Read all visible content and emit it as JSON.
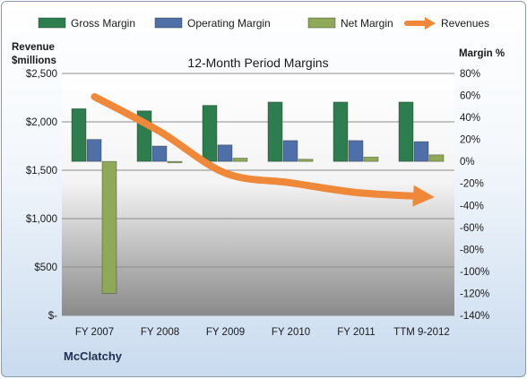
{
  "chart_data": {
    "type": "bar",
    "title": "12-Month Period Margins",
    "company": "McClatchy",
    "categories": [
      "FY 2007",
      "FY 2008",
      "FY 2009",
      "FY 2010",
      "FY 2011",
      "TTM 9-2012"
    ],
    "series": [
      {
        "name": "Gross Margin",
        "axis": "right",
        "unit": "%",
        "color": "#2e7d4f",
        "values": [
          48,
          46,
          51,
          54,
          54,
          54
        ]
      },
      {
        "name": "Operating Margin",
        "axis": "right",
        "unit": "%",
        "color": "#4f6fa8",
        "values": [
          20,
          14,
          15,
          19,
          19,
          18
        ]
      },
      {
        "name": "Net Margin",
        "axis": "right",
        "unit": "%",
        "color": "#8fa958",
        "values": [
          -120,
          -1,
          3,
          2,
          4,
          6
        ]
      },
      {
        "name": "Revenues",
        "axis": "left",
        "type": "line",
        "unit": "$millions",
        "color": "#f0883a",
        "values": [
          2260,
          1900,
          1470,
          1370,
          1270,
          1230
        ]
      }
    ],
    "left_axis": {
      "label_line1": "Revenue",
      "label_line2": "$millions",
      "ylim": [
        0,
        2500
      ],
      "tick_values": [
        0,
        500,
        1000,
        1500,
        2000,
        2500
      ],
      "tick_labels": [
        "$-",
        "$500",
        "$1,000",
        "$1,500",
        "$2,000",
        "$2,500"
      ]
    },
    "right_axis": {
      "label": "Margin %",
      "ylim": [
        -140,
        80
      ],
      "tick_values": [
        80,
        60,
        40,
        20,
        0,
        -20,
        -40,
        -60,
        -80,
        -100,
        -120,
        -140
      ],
      "tick_labels": [
        "80%",
        "60%",
        "40%",
        "20%",
        "0%",
        "-20%",
        "-40%",
        "-60%",
        "-80%",
        "-100%",
        "-120%",
        "-140%"
      ]
    },
    "grid": true,
    "legend_position": "top"
  }
}
